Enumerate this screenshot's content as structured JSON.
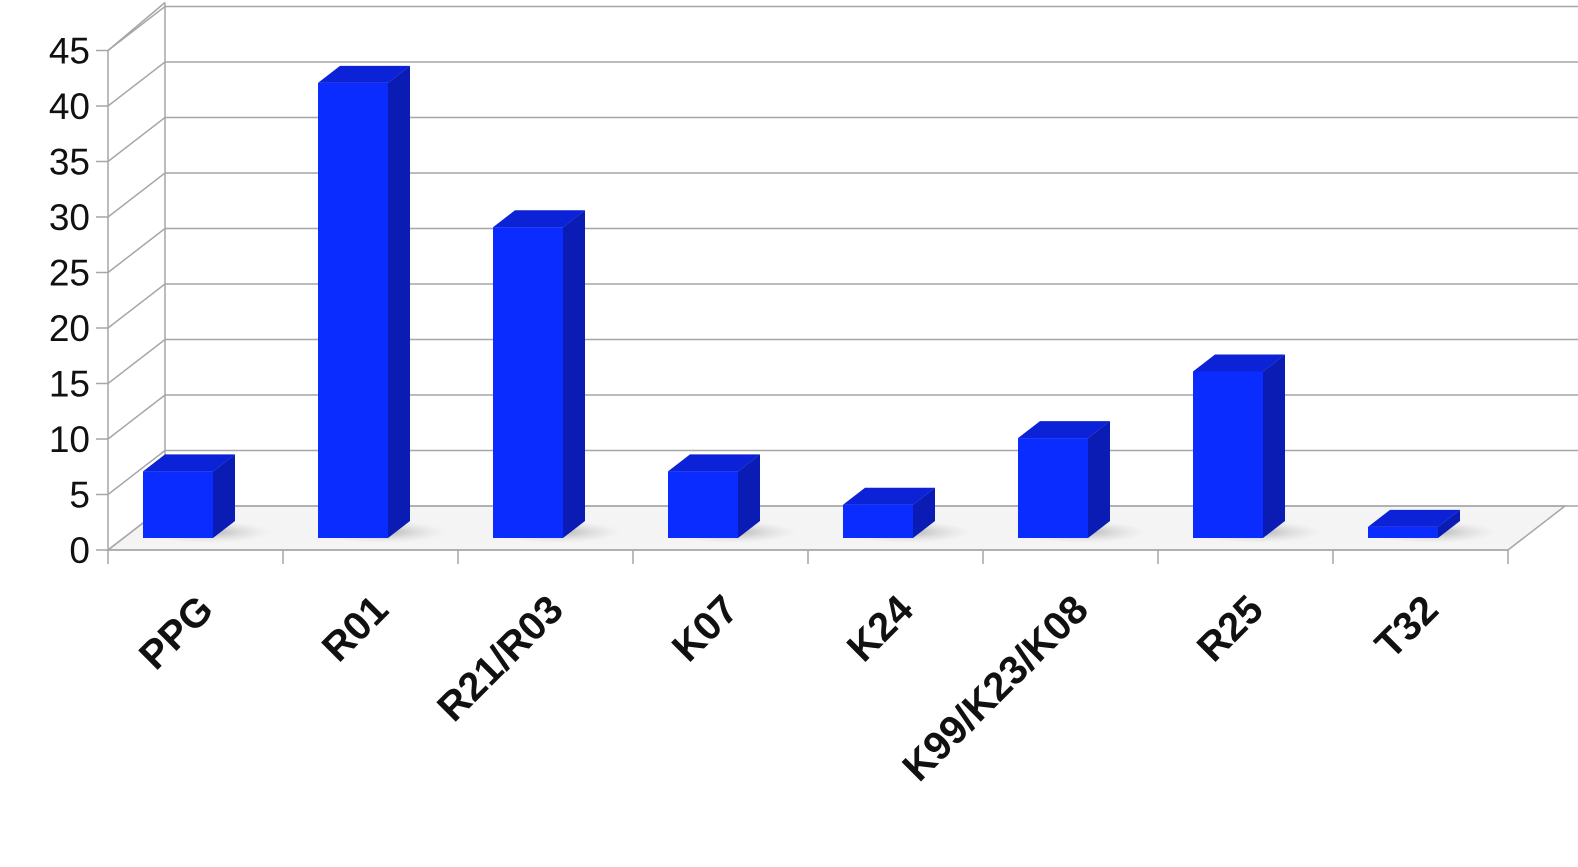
{
  "chart_data": {
    "type": "bar",
    "style": "3d-column",
    "categories": [
      "PPG",
      "R01",
      "R21/R03",
      "K07",
      "K24",
      "K99/K23/K08",
      "R25",
      "T32"
    ],
    "values": [
      6,
      41,
      28,
      6,
      3,
      9,
      15,
      1
    ],
    "ylim": [
      0,
      45
    ],
    "ytick_step": 5,
    "ytick_labels": [
      "0",
      "5",
      "10",
      "15",
      "20",
      "25",
      "30",
      "35",
      "40",
      "45"
    ],
    "grid": true,
    "legend": "none",
    "colors": {
      "bar_front": "#0a2cff",
      "bar_side": "#0a1cb4",
      "bar_top": "#0b22d6",
      "gridline": "#a6a6a6",
      "floor": "#f4f4f4"
    }
  }
}
